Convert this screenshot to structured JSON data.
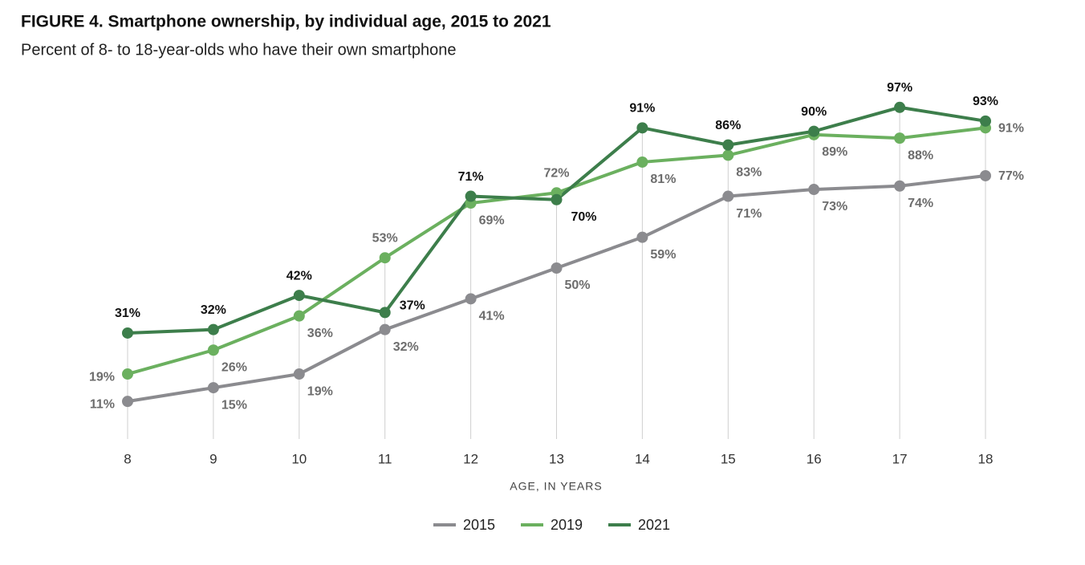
{
  "chart_data": {
    "type": "line",
    "title": "FIGURE 4. Smartphone ownership, by individual age, 2015 to 2021",
    "subtitle": "Percent of 8- to 18-year-olds who have their own smartphone",
    "x_label": "AGE, IN YEARS",
    "x": [
      8,
      9,
      10,
      11,
      12,
      13,
      14,
      15,
      16,
      17,
      18
    ],
    "xlim": [
      8,
      18
    ],
    "xticks": [
      8,
      9,
      10,
      11,
      12,
      13,
      14,
      15,
      16,
      17,
      18
    ],
    "ylim": [
      0,
      100
    ],
    "series": [
      {
        "name": "2015",
        "color": "#8b8b8f",
        "values": [
          11,
          15,
          19,
          32,
          41,
          50,
          59,
          71,
          73,
          74,
          77
        ],
        "value_labels": [
          "11%",
          "15%",
          "19%",
          "32%",
          "41%",
          "50%",
          "59%",
          "71%",
          "73%",
          "74%",
          "77%"
        ]
      },
      {
        "name": "2019",
        "color": "#6bb05f",
        "values": [
          19,
          26,
          36,
          53,
          69,
          72,
          81,
          83,
          89,
          88,
          91
        ],
        "value_labels": [
          "19%",
          "26%",
          "36%",
          "53%",
          "69%",
          "72%",
          "81%",
          "83%",
          "89%",
          "88%",
          "91%"
        ]
      },
      {
        "name": "2021",
        "color": "#3d7e4b",
        "values": [
          31,
          32,
          42,
          37,
          71,
          70,
          91,
          86,
          90,
          97,
          93
        ],
        "value_labels": [
          "31%",
          "32%",
          "42%",
          "37%",
          "71%",
          "70%",
          "91%",
          "86%",
          "90%",
          "97%",
          "93%"
        ]
      }
    ],
    "legend": "bottom"
  }
}
